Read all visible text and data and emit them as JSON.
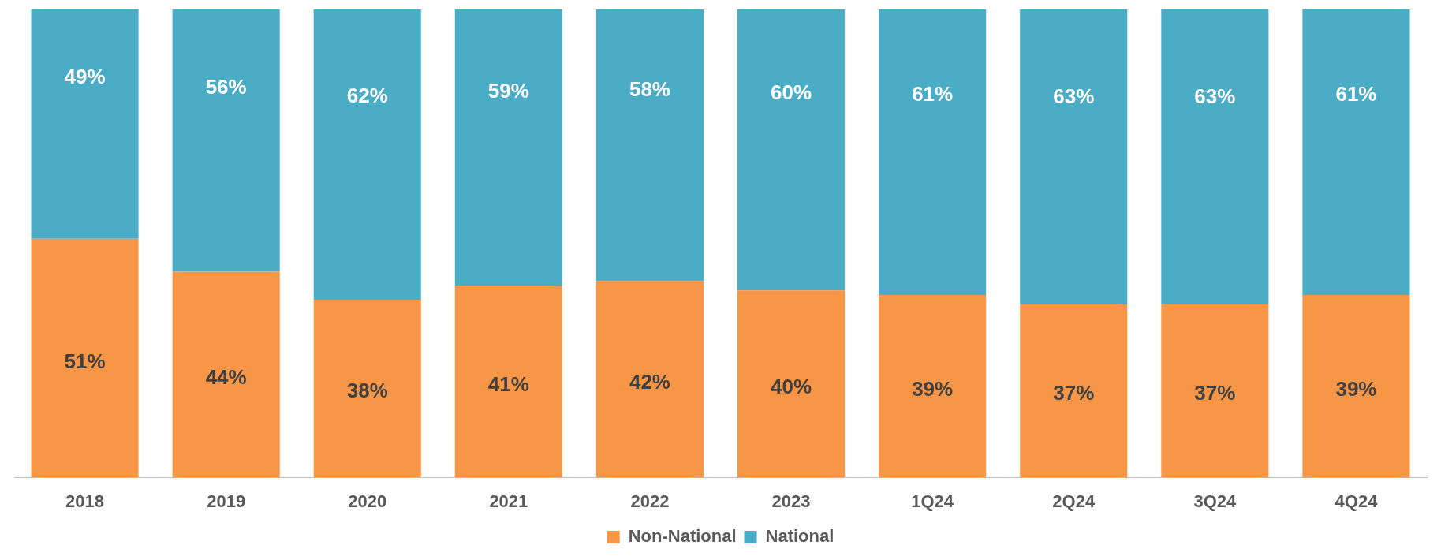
{
  "chart_data": {
    "type": "bar",
    "stacked": true,
    "legend": "bottom",
    "grid": false,
    "categories": [
      "2018",
      "2019",
      "2020",
      "2021",
      "2022",
      "2023",
      "1Q24",
      "2Q24",
      "3Q24",
      "4Q24"
    ],
    "series": [
      {
        "name": "Non-National",
        "color": "#f79646",
        "values": [
          51,
          44,
          38,
          41,
          42,
          40,
          39,
          37,
          37,
          39
        ],
        "value_labels": [
          "51%",
          "44%",
          "38%",
          "41%",
          "42%",
          "40%",
          "39%",
          "37%",
          "37%",
          "39%"
        ]
      },
      {
        "name": "National",
        "color": "#4bacc6",
        "values": [
          49,
          56,
          62,
          59,
          58,
          60,
          61,
          63,
          63,
          61
        ],
        "value_labels": [
          "49%",
          "56%",
          "62%",
          "59%",
          "58%",
          "60%",
          "61%",
          "63%",
          "63%",
          "61%"
        ]
      }
    ]
  }
}
